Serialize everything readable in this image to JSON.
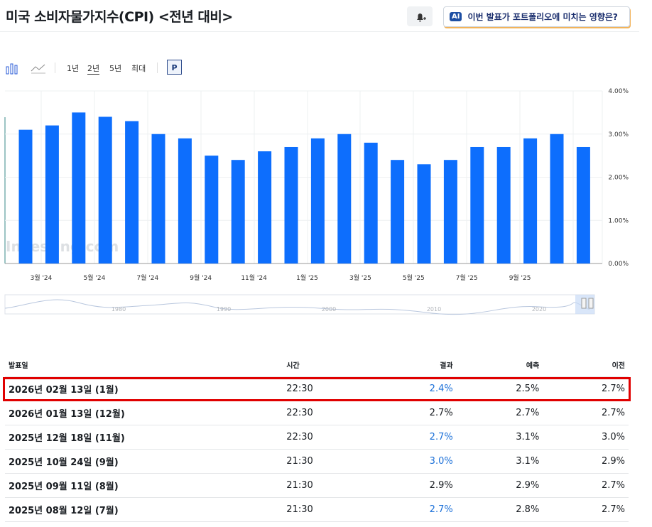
{
  "header": {
    "title": "미국 소비자물가지수(CPI) <전년 대비>",
    "ai_badge": "AI",
    "ai_prompt": "이번 발표가 포트폴리오에 미치는 영향은?"
  },
  "toolbar": {
    "ranges": [
      "1년",
      "2년",
      "5년",
      "최대"
    ],
    "active_range": "2년",
    "p_button": "P"
  },
  "chart": {
    "type": "bar",
    "color": "#0d6efd",
    "watermark": "Investing.com",
    "values": [
      3.1,
      3.2,
      3.5,
      3.4,
      3.3,
      3.0,
      2.9,
      2.5,
      2.4,
      2.6,
      2.7,
      2.9,
      3.0,
      2.8,
      2.4,
      2.3,
      2.4,
      2.7,
      2.7,
      2.9,
      3.0,
      2.7
    ],
    "xtick_labels": [
      "3월 '24",
      "5월 '24",
      "7월 '24",
      "9월 '24",
      "11월 '24",
      "1월 '25",
      "3월 '25",
      "5월 '25",
      "7월 '25",
      "9월 '25"
    ],
    "ylim": [
      0,
      4
    ],
    "yticks": [
      {
        "value": 0,
        "label": "0.00%"
      },
      {
        "value": 1,
        "label": "1.00%"
      },
      {
        "value": 2,
        "label": "2.00%"
      },
      {
        "value": 3,
        "label": "3.00%"
      },
      {
        "value": 4,
        "label": "4.00%"
      }
    ],
    "grid": true,
    "navigator_labels": [
      "1980",
      "1990",
      "2000",
      "2010",
      "2020"
    ]
  },
  "table": {
    "columns": [
      "발표일",
      "시간",
      "결과",
      "예측",
      "이전"
    ],
    "rows": [
      {
        "date": "2026년 02월 13일 (1월)",
        "time": "22:30",
        "actual": "2.4%",
        "forecast": "2.5%",
        "previous": "2.7%",
        "actual_color": "#1a6fd8"
      },
      {
        "date": "2026년 01월 13일 (12월)",
        "time": "22:30",
        "actual": "2.7%",
        "forecast": "2.7%",
        "previous": "2.7%",
        "actual_color": "#181c21"
      },
      {
        "date": "2025년 12월 18일 (11월)",
        "time": "22:30",
        "actual": "2.7%",
        "forecast": "3.1%",
        "previous": "3.0%",
        "actual_color": "#1a6fd8"
      },
      {
        "date": "2025년 10월 24일 (9월)",
        "time": "21:30",
        "actual": "3.0%",
        "forecast": "3.1%",
        "previous": "2.9%",
        "actual_color": "#1a6fd8"
      },
      {
        "date": "2025년 09월 11일 (8월)",
        "time": "21:30",
        "actual": "2.9%",
        "forecast": "2.9%",
        "previous": "2.7%",
        "actual_color": "#181c21"
      },
      {
        "date": "2025년 08월 12일 (7월)",
        "time": "21:30",
        "actual": "2.7%",
        "forecast": "2.8%",
        "previous": "2.7%",
        "actual_color": "#1a6fd8"
      }
    ]
  }
}
